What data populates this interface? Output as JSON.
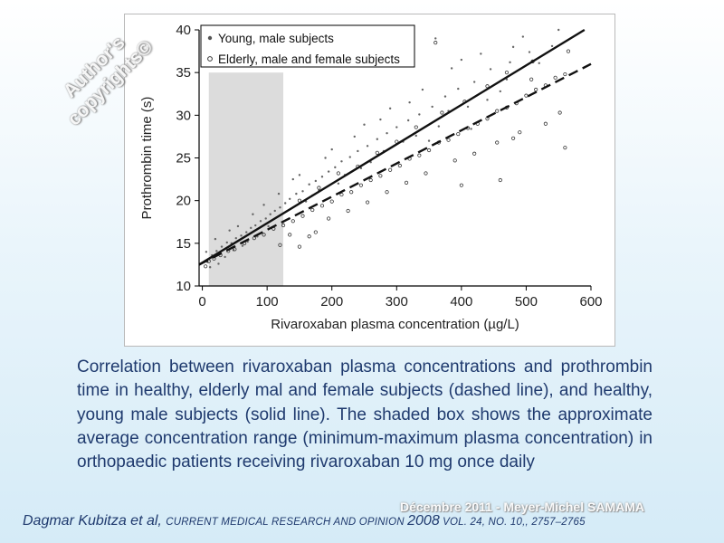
{
  "watermark": {
    "line1": "Author's",
    "line2": "copyrights©"
  },
  "caption": "Correlation between rivaroxaban plasma concentrations and prothrombin time in healthy, elderly mal and female subjects (dashed line), and healthy, young male subjects (solid line). The shaded box shows the approximate average concentration range (minimum-maximum plasma concentration) in orthopaedic patients receiving rivaroxaban 10 mg once daily",
  "date_stamp": "Décembre 2011 - Meyer-Michel SAMAMA",
  "citation": {
    "authors": "Dagmar Kubitza et al, ",
    "journal": "CURRENT MEDICAL RESEARCH AND OPINION ",
    "year": "2008",
    "volume": " VOL. 24, NO. 10,, 2757–2765"
  },
  "chart_data": {
    "type": "scatter",
    "title": "",
    "xlabel": "Rivaroxaban plasma concentration (µg/L)",
    "ylabel": "Prothrombin time (s)",
    "xlim": [
      -5,
      600
    ],
    "ylim": [
      10,
      40
    ],
    "xticks": [
      0,
      100,
      200,
      300,
      400,
      500,
      600
    ],
    "yticks": [
      10,
      15,
      20,
      25,
      30,
      35,
      40
    ],
    "xtick_labels": [
      "0",
      "100",
      "200",
      "300",
      "400",
      "500",
      "600"
    ],
    "ytick_labels": [
      "10",
      "15",
      "20",
      "25",
      "30",
      "35",
      "40"
    ],
    "grid": false,
    "legend_position": "top-left",
    "shaded_range": {
      "x": [
        10,
        125
      ],
      "y": [
        10,
        35
      ]
    },
    "series": [
      {
        "name": "Young, male subjects",
        "marker": "filled-dot",
        "fit_line": {
          "style": "solid",
          "x": [
            -5,
            590
          ],
          "y": [
            12.5,
            40
          ]
        },
        "points": [
          [
            8,
            12.8
          ],
          [
            15,
            13.6
          ],
          [
            22,
            14.1
          ],
          [
            30,
            14.6
          ],
          [
            38,
            15.1
          ],
          [
            45,
            15.0
          ],
          [
            52,
            15.6
          ],
          [
            60,
            15.9
          ],
          [
            68,
            16.3
          ],
          [
            75,
            16.8
          ],
          [
            82,
            17.1
          ],
          [
            90,
            17.6
          ],
          [
            98,
            17.9
          ],
          [
            105,
            18.4
          ],
          [
            112,
            18.8
          ],
          [
            120,
            19.2
          ],
          [
            128,
            19.7
          ],
          [
            135,
            20.2
          ],
          [
            145,
            20.8
          ],
          [
            155,
            21.1
          ],
          [
            165,
            21.9
          ],
          [
            175,
            22.3
          ],
          [
            185,
            22.8
          ],
          [
            195,
            23.4
          ],
          [
            205,
            23.9
          ],
          [
            215,
            24.6
          ],
          [
            228,
            25.1
          ],
          [
            240,
            25.8
          ],
          [
            255,
            26.4
          ],
          [
            270,
            27.2
          ],
          [
            285,
            27.9
          ],
          [
            300,
            28.6
          ],
          [
            318,
            29.4
          ],
          [
            335,
            30.1
          ],
          [
            355,
            31.0
          ],
          [
            375,
            32.2
          ],
          [
            395,
            33.1
          ],
          [
            420,
            33.9
          ],
          [
            445,
            35.4
          ],
          [
            475,
            36.2
          ],
          [
            505,
            37.4
          ],
          [
            540,
            38.1
          ],
          [
            20,
            15.5
          ],
          [
            35,
            13.4
          ],
          [
            55,
            17.0
          ],
          [
            70,
            15.2
          ],
          [
            95,
            19.5
          ],
          [
            110,
            16.9
          ],
          [
            140,
            22.5
          ],
          [
            160,
            19.9
          ],
          [
            190,
            25.0
          ],
          [
            210,
            22.0
          ],
          [
            235,
            27.5
          ],
          [
            260,
            24.5
          ],
          [
            290,
            30.8
          ],
          [
            310,
            26.9
          ],
          [
            340,
            33.0
          ],
          [
            365,
            28.7
          ],
          [
            385,
            35.5
          ],
          [
            410,
            31.0
          ],
          [
            430,
            37.2
          ],
          [
            460,
            32.8
          ],
          [
            360,
            39.0
          ],
          [
            495,
            39.2
          ],
          [
            550,
            40.0
          ],
          [
            25,
            12.6
          ],
          [
            48,
            14.2
          ],
          [
            85,
            15.8
          ],
          [
            125,
            17.5
          ],
          [
            170,
            20.6
          ],
          [
            220,
            23.0
          ],
          [
            250,
            28.9
          ],
          [
            280,
            25.8
          ],
          [
            330,
            27.6
          ],
          [
            380,
            30.5
          ],
          [
            470,
            34.2
          ],
          [
            520,
            36.1
          ],
          [
            6,
            14.0
          ],
          [
            12,
            12.2
          ],
          [
            42,
            16.5
          ],
          [
            62,
            14.7
          ],
          [
            78,
            18.4
          ],
          [
            102,
            17.0
          ],
          [
            118,
            20.8
          ],
          [
            150,
            23.0
          ],
          [
            180,
            21.2
          ],
          [
            200,
            26.0
          ],
          [
            245,
            23.8
          ],
          [
            275,
            29.5
          ],
          [
            320,
            31.5
          ],
          [
            350,
            27.0
          ],
          [
            400,
            36.5
          ],
          [
            415,
            28.4
          ],
          [
            440,
            31.8
          ],
          [
            480,
            38.0
          ]
        ]
      },
      {
        "name": "Elderly, male and female subjects",
        "marker": "open-circle",
        "fit_line": {
          "style": "dashed",
          "x": [
            -5,
            600
          ],
          "y": [
            12.5,
            36
          ]
        },
        "points": [
          [
            5,
            12.3
          ],
          [
            10,
            12.9
          ],
          [
            18,
            13.2
          ],
          [
            28,
            13.6
          ],
          [
            40,
            14.1
          ],
          [
            50,
            14.3
          ],
          [
            65,
            15.0
          ],
          [
            80,
            15.6
          ],
          [
            95,
            16.0
          ],
          [
            110,
            16.7
          ],
          [
            125,
            17.1
          ],
          [
            140,
            17.6
          ],
          [
            155,
            18.2
          ],
          [
            170,
            18.9
          ],
          [
            185,
            19.4
          ],
          [
            200,
            19.9
          ],
          [
            215,
            20.7
          ],
          [
            230,
            21.0
          ],
          [
            245,
            21.8
          ],
          [
            260,
            22.4
          ],
          [
            275,
            22.9
          ],
          [
            290,
            23.6
          ],
          [
            305,
            24.1
          ],
          [
            320,
            24.9
          ],
          [
            335,
            25.3
          ],
          [
            350,
            25.9
          ],
          [
            365,
            26.8
          ],
          [
            380,
            27.1
          ],
          [
            395,
            27.8
          ],
          [
            410,
            28.5
          ],
          [
            425,
            29.0
          ],
          [
            440,
            29.6
          ],
          [
            455,
            30.5
          ],
          [
            470,
            30.9
          ],
          [
            485,
            31.4
          ],
          [
            500,
            32.3
          ],
          [
            515,
            33.0
          ],
          [
            530,
            33.5
          ],
          [
            545,
            34.4
          ],
          [
            560,
            34.8
          ],
          [
            120,
            14.8
          ],
          [
            135,
            16.0
          ],
          [
            150,
            20.0
          ],
          [
            165,
            15.8
          ],
          [
            180,
            21.5
          ],
          [
            195,
            17.9
          ],
          [
            210,
            23.2
          ],
          [
            225,
            18.8
          ],
          [
            240,
            24.0
          ],
          [
            255,
            19.8
          ],
          [
            270,
            25.6
          ],
          [
            285,
            21.0
          ],
          [
            300,
            26.9
          ],
          [
            315,
            22.1
          ],
          [
            330,
            28.6
          ],
          [
            345,
            23.2
          ],
          [
            370,
            30.3
          ],
          [
            390,
            24.7
          ],
          [
            405,
            31.6
          ],
          [
            420,
            25.5
          ],
          [
            440,
            33.4
          ],
          [
            455,
            26.8
          ],
          [
            470,
            35.0
          ],
          [
            490,
            28.0
          ],
          [
            510,
            36.3
          ],
          [
            530,
            29.0
          ],
          [
            560,
            26.2
          ],
          [
            400,
            21.8
          ],
          [
            150,
            14.6
          ],
          [
            175,
            16.3
          ],
          [
            460,
            22.4
          ],
          [
            552,
            30.3
          ],
          [
            565,
            37.5
          ],
          [
            480,
            27.3
          ],
          [
            360,
            38.5
          ],
          [
            508,
            34.2
          ]
        ]
      }
    ]
  }
}
